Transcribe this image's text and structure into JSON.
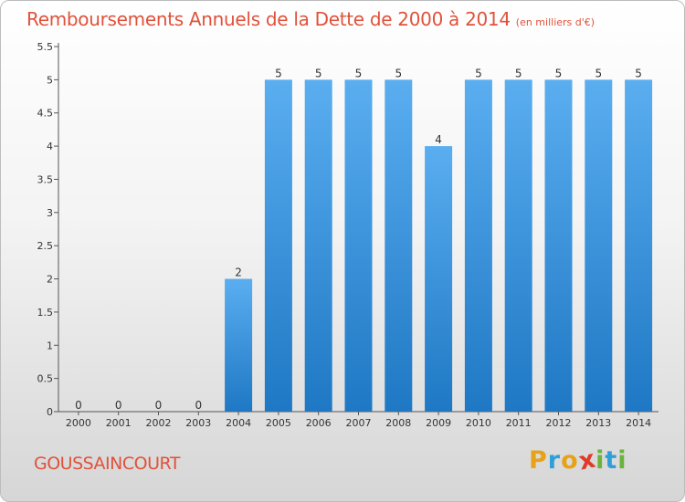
{
  "header": {
    "title": "Remboursements Annuels de la Dette de 2000 à 2014",
    "unit": "(en milliers d'€)"
  },
  "footer": {
    "commune": "GOUSSAINCOURT",
    "logo_letters": [
      "P",
      "r",
      "o",
      "x",
      "i",
      "t",
      "i"
    ]
  },
  "colors": {
    "title": "#e0523a",
    "bar_top": "#5aaef0",
    "bar_bottom": "#1f78c4",
    "logo": [
      "#e8a21a",
      "#2e9fd8",
      "#e8a21a",
      "#e03a2a",
      "#6bb33a",
      "#2e9fd8",
      "#6bb33a"
    ]
  },
  "chart_data": {
    "type": "bar",
    "title": "Remboursements Annuels de la Dette de 2000 à 2014",
    "categories": [
      "2000",
      "2001",
      "2002",
      "2003",
      "2004",
      "2005",
      "2006",
      "2007",
      "2008",
      "2009",
      "2010",
      "2011",
      "2012",
      "2013",
      "2014"
    ],
    "values": [
      0,
      0,
      0,
      0,
      2,
      5,
      5,
      5,
      5,
      4,
      5,
      5,
      5,
      5,
      5
    ],
    "data_labels": [
      "0",
      "0",
      "0",
      "0",
      "2",
      "5",
      "5",
      "5",
      "5",
      "4",
      "5",
      "5",
      "5",
      "5",
      "5"
    ],
    "ylim": [
      0,
      5.5
    ],
    "yticks": [
      0,
      0.5,
      1,
      1.5,
      2,
      2.5,
      3,
      3.5,
      4,
      4.5,
      5,
      5.5
    ],
    "ytick_labels": [
      "0",
      "0.5",
      "1",
      "1.5",
      "2",
      "2.5",
      "3",
      "3.5",
      "4",
      "4.5",
      "5",
      "5.5"
    ],
    "grid": false,
    "legend": "none"
  }
}
